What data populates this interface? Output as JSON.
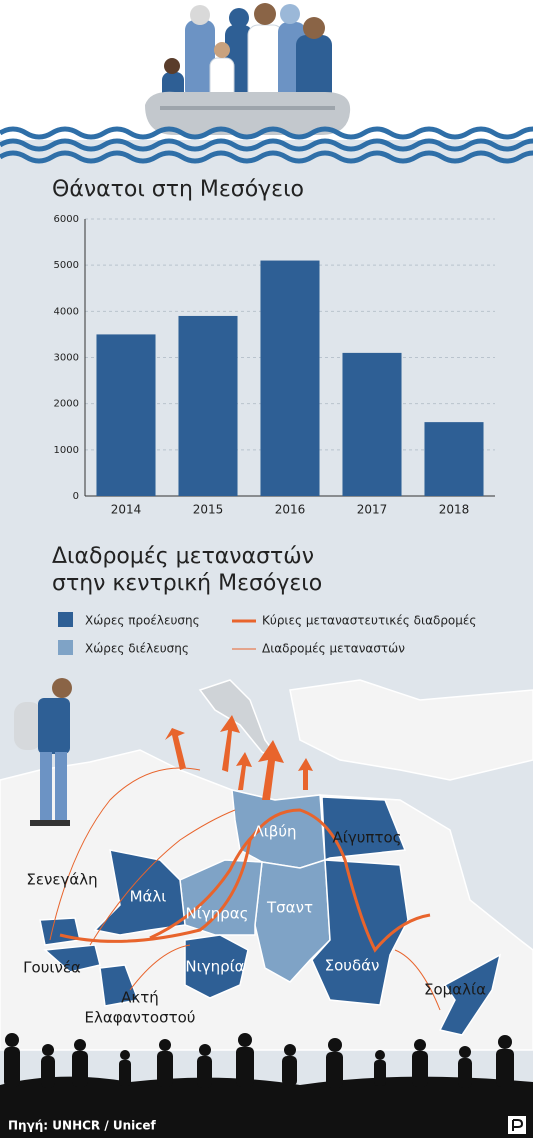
{
  "chart_data": {
    "type": "bar",
    "title": "Θάνατοι στη Μεσόγειο",
    "categories": [
      "2014",
      "2015",
      "2016",
      "2017",
      "2018"
    ],
    "values": [
      3500,
      3900,
      5100,
      3100,
      1600
    ],
    "color": "#2e5f95",
    "ylim": [
      0,
      6000
    ],
    "yticks": [
      0,
      1000,
      2000,
      3000,
      4000,
      5000,
      6000
    ],
    "grid": true
  },
  "map": {
    "title": [
      "Διαδρομές μεταναστών",
      "στην κεντρική Μεσόγειο"
    ],
    "legend": [
      "Χώρες προέλευσης",
      "Χώρες διέλευσης",
      "Κύριες μεταναστευτικές διαδρομές",
      "Διαδρομές μεταναστών"
    ],
    "countries": [
      [
        "Λιβύη"
      ],
      [
        "Αίγυπτος"
      ],
      [
        "Σενεγάλη"
      ],
      [
        "Μάλι"
      ],
      [
        "Νίγηρας"
      ],
      [
        "Τσαντ"
      ],
      [
        "Γουινέα"
      ],
      [
        "Νιγηρία"
      ],
      [
        "Σουδάν"
      ],
      [
        "Ακτή",
        "Ελαφαντοστού"
      ],
      [
        "Σομαλία"
      ]
    ]
  },
  "source": "Πηγή: UNHCR / Unicef"
}
